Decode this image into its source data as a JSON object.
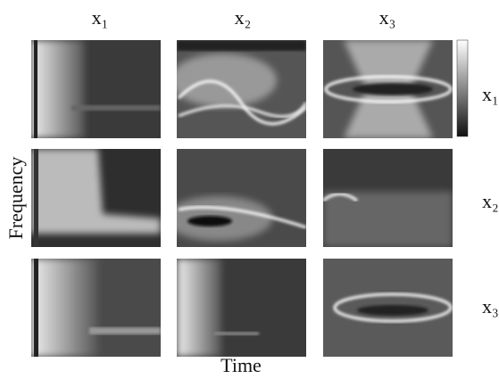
{
  "columns": [
    "x₁",
    "x₂",
    "x₃"
  ],
  "rows": [
    "x₁",
    "x₂",
    "x₃"
  ],
  "x_label": "Time",
  "y_label": "Frequency"
}
